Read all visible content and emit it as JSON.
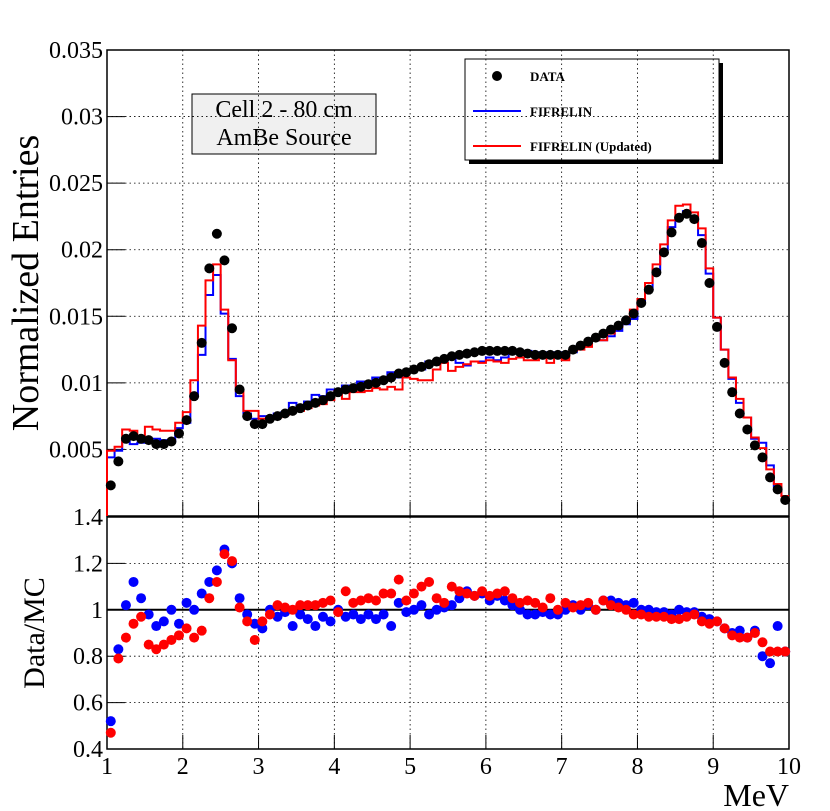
{
  "chart_data": [
    {
      "type": "histogram",
      "ylabel": "Normalized Entries",
      "ylim": [
        0,
        0.035
      ],
      "yticks": [
        0.005,
        0.01,
        0.015,
        0.02,
        0.025,
        0.03,
        0.035
      ],
      "grid": true,
      "annotation": [
        "Cell 2 - 80 cm",
        "AmBe Source"
      ],
      "legend": "top-right",
      "bins": [
        1,
        1.1,
        1.2,
        1.3,
        1.4,
        1.5,
        1.6,
        1.7,
        1.8,
        1.9,
        2,
        2.1,
        2.2,
        2.3,
        2.4,
        2.5,
        2.6,
        2.7,
        2.8,
        2.9,
        3,
        3.1,
        3.2,
        3.3,
        3.4,
        3.5,
        3.6,
        3.7,
        3.8,
        3.9,
        4,
        4.1,
        4.2,
        4.3,
        4.4,
        4.5,
        4.6,
        4.7,
        4.8,
        4.9,
        5,
        5.1,
        5.2,
        5.3,
        5.4,
        5.5,
        5.6,
        5.7,
        5.8,
        5.9,
        6,
        6.1,
        6.2,
        6.3,
        6.4,
        6.5,
        6.6,
        6.7,
        6.8,
        6.9,
        7,
        7.1,
        7.2,
        7.3,
        7.4,
        7.5,
        7.6,
        7.7,
        7.8,
        7.9,
        8,
        8.1,
        8.2,
        8.3,
        8.4,
        8.5,
        8.6,
        8.7,
        8.8,
        8.9,
        9,
        9.1,
        9.2,
        9.3,
        9.4,
        9.5,
        9.6,
        9.7,
        9.8,
        9.9,
        10
      ],
      "series": [
        {
          "name": "DATA",
          "style": "points",
          "color": "#000000",
          "values": [
            0.0023,
            0.0041,
            0.0058,
            0.006,
            0.0058,
            0.0057,
            0.0054,
            0.0054,
            0.0056,
            0.0062,
            0.0072,
            0.009,
            0.013,
            0.0186,
            0.0212,
            0.0192,
            0.0141,
            0.0095,
            0.0075,
            0.0069,
            0.0069,
            0.0073,
            0.0075,
            0.0077,
            0.0079,
            0.0081,
            0.0083,
            0.0085,
            0.0087,
            0.009,
            0.0093,
            0.0095,
            0.0096,
            0.0097,
            0.0099,
            0.01,
            0.0102,
            0.0104,
            0.0107,
            0.0108,
            0.011,
            0.0112,
            0.0114,
            0.0116,
            0.0118,
            0.012,
            0.0121,
            0.0122,
            0.0123,
            0.0124,
            0.0124,
            0.0124,
            0.0124,
            0.0124,
            0.0123,
            0.0122,
            0.0121,
            0.0121,
            0.0121,
            0.0121,
            0.0121,
            0.0125,
            0.0128,
            0.0131,
            0.0134,
            0.0137,
            0.014,
            0.0143,
            0.0147,
            0.0152,
            0.016,
            0.017,
            0.0183,
            0.0198,
            0.0213,
            0.0224,
            0.0227,
            0.0223,
            0.0205,
            0.0175,
            0.0142,
            0.0115,
            0.0093,
            0.0077,
            0.0065,
            0.0053,
            0.0044,
            0.0029,
            0.002,
            0.0012
          ]
        },
        {
          "name": "FIFRELIN",
          "style": "step",
          "color": "#0000ff",
          "values": [
            0.0044,
            0.0049,
            0.0057,
            0.0054,
            0.0055,
            0.0058,
            0.0058,
            0.0057,
            0.0056,
            0.0066,
            0.007,
            0.009,
            0.0121,
            0.0166,
            0.0181,
            0.0152,
            0.0118,
            0.009,
            0.0077,
            0.0073,
            0.0075,
            0.0073,
            0.0077,
            0.0078,
            0.0085,
            0.0083,
            0.0086,
            0.0091,
            0.009,
            0.0095,
            0.0093,
            0.0098,
            0.0098,
            0.0101,
            0.0101,
            0.0104,
            0.0104,
            0.0108,
            0.0104,
            0.0109,
            0.011,
            0.011,
            0.0116,
            0.0116,
            0.0117,
            0.0118,
            0.0115,
            0.0113,
            0.0116,
            0.0116,
            0.0119,
            0.0117,
            0.0119,
            0.0122,
            0.0123,
            0.0124,
            0.0123,
            0.0122,
            0.0123,
            0.0123,
            0.0121,
            0.0123,
            0.0128,
            0.0128,
            0.0134,
            0.0132,
            0.0135,
            0.0139,
            0.0144,
            0.0148,
            0.016,
            0.017,
            0.0185,
            0.02,
            0.0217,
            0.0224,
            0.0229,
            0.0225,
            0.0211,
            0.0182,
            0.0149,
            0.0125,
            0.0103,
            0.0085,
            0.0074,
            0.0058,
            0.0055,
            0.0038,
            0.0022,
            0.0015
          ]
        },
        {
          "name": "FIFRELIN (Updated)",
          "style": "step",
          "color": "#ff0000",
          "values": [
            0.0049,
            0.0052,
            0.0065,
            0.0064,
            0.006,
            0.0067,
            0.0065,
            0.0064,
            0.0064,
            0.007,
            0.0078,
            0.0102,
            0.0143,
            0.0177,
            0.0189,
            0.0155,
            0.0117,
            0.0094,
            0.0079,
            0.0079,
            0.0073,
            0.0074,
            0.0074,
            0.0076,
            0.0079,
            0.0079,
            0.0081,
            0.0083,
            0.0084,
            0.0087,
            0.0094,
            0.0088,
            0.0093,
            0.0093,
            0.0094,
            0.0096,
            0.0095,
            0.0097,
            0.0095,
            0.0104,
            0.0103,
            0.0102,
            0.0102,
            0.011,
            0.0115,
            0.0109,
            0.0112,
            0.0114,
            0.0116,
            0.0115,
            0.0117,
            0.0116,
            0.0115,
            0.0118,
            0.0119,
            0.0117,
            0.0117,
            0.012,
            0.0115,
            0.0121,
            0.0117,
            0.0124,
            0.0125,
            0.0127,
            0.0134,
            0.0132,
            0.0137,
            0.0142,
            0.0147,
            0.0155,
            0.0163,
            0.0175,
            0.0189,
            0.0204,
            0.0222,
            0.0233,
            0.0234,
            0.0228,
            0.0216,
            0.0186,
            0.0149,
            0.0125,
            0.0104,
            0.0088,
            0.0074,
            0.0059,
            0.0051,
            0.0035,
            0.0024,
            0.0015
          ]
        }
      ]
    },
    {
      "type": "scatter",
      "ylabel": "Data/MC",
      "xlabel": "MeV",
      "xlim": [
        1,
        10
      ],
      "xticks": [
        1,
        2,
        3,
        4,
        5,
        6,
        7,
        8,
        9,
        10
      ],
      "ylim": [
        0.4,
        1.4
      ],
      "yticks": [
        0.4,
        0.6,
        0.8,
        1,
        1.2,
        1.4
      ],
      "grid": true,
      "hline": 1,
      "series": [
        {
          "name": "FIFRELIN",
          "color": "#0000ff",
          "values": [
            0.52,
            0.83,
            1.02,
            1.12,
            1.05,
            0.98,
            0.93,
            0.95,
            1.0,
            0.94,
            1.03,
            1.0,
            1.07,
            1.12,
            1.17,
            1.26,
            1.2,
            1.05,
            0.98,
            0.94,
            0.92,
            1.0,
            0.97,
            0.99,
            0.93,
            0.98,
            0.96,
            0.93,
            0.97,
            0.95,
            1.0,
            0.97,
            0.98,
            0.96,
            0.98,
            0.96,
            0.98,
            0.93,
            1.03,
            0.99,
            1.0,
            1.02,
            0.98,
            1.0,
            1.01,
            1.02,
            1.05,
            1.08,
            1.06,
            1.07,
            1.04,
            1.06,
            1.04,
            1.02,
            1.0,
            0.98,
            0.98,
            0.99,
            0.98,
            0.98,
            1.0,
            1.02,
            1.0,
            1.02,
            1.0,
            1.04,
            1.04,
            1.03,
            1.02,
            1.03,
            1.0,
            1.0,
            0.99,
            0.99,
            0.98,
            1.0,
            0.99,
            0.99,
            0.97,
            0.96,
            0.95,
            0.92,
            0.9,
            0.91,
            0.88,
            0.91,
            0.8,
            0.77,
            0.93,
            0.82
          ]
        },
        {
          "name": "FIFRELIN (Updated)",
          "color": "#ff0000",
          "values": [
            0.47,
            0.79,
            0.88,
            0.94,
            0.97,
            0.85,
            0.83,
            0.85,
            0.87,
            0.89,
            0.92,
            0.88,
            0.91,
            1.05,
            1.12,
            1.24,
            1.21,
            1.01,
            0.95,
            0.87,
            0.95,
            0.98,
            1.02,
            1.01,
            1.0,
            1.02,
            1.02,
            1.02,
            1.03,
            1.04,
            0.99,
            1.08,
            1.03,
            1.04,
            1.05,
            1.04,
            1.07,
            1.07,
            1.13,
            1.04,
            1.07,
            1.1,
            1.12,
            1.05,
            1.03,
            1.1,
            1.08,
            1.07,
            1.06,
            1.08,
            1.06,
            1.07,
            1.08,
            1.05,
            1.03,
            1.04,
            1.03,
            1.01,
            1.05,
            1.0,
            1.03,
            1.01,
            1.02,
            1.03,
            1.0,
            1.04,
            1.02,
            1.01,
            1.0,
            0.98,
            0.98,
            0.97,
            0.97,
            0.97,
            0.96,
            0.96,
            0.97,
            0.98,
            0.95,
            0.94,
            0.95,
            0.92,
            0.89,
            0.88,
            0.88,
            0.9,
            0.86,
            0.82,
            0.82,
            0.82
          ]
        }
      ]
    }
  ]
}
